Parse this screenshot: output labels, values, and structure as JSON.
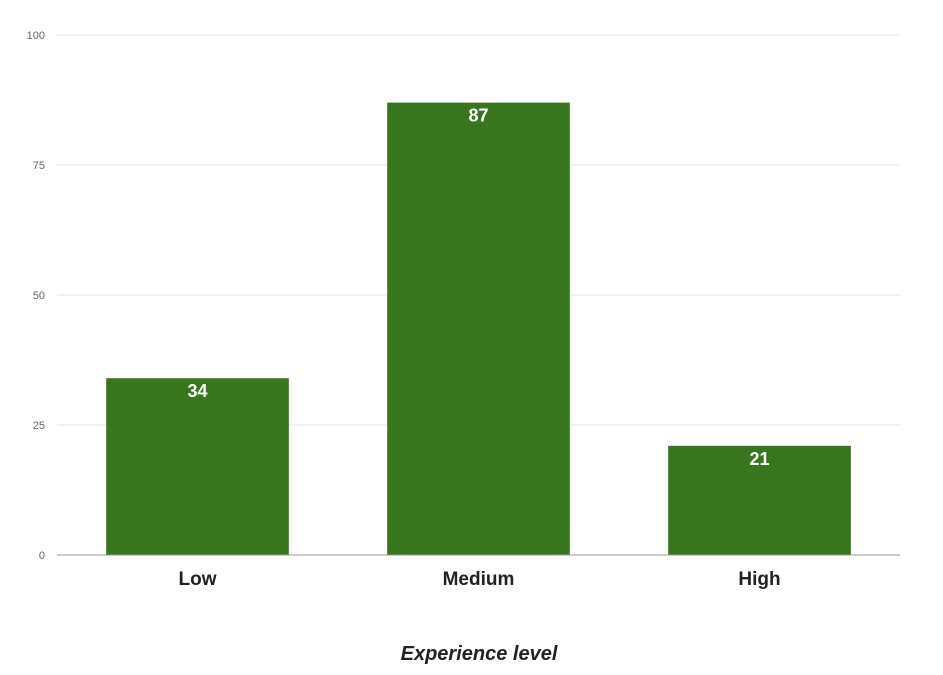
{
  "chart_data": {
    "type": "bar",
    "title": "",
    "xlabel": "Experience level",
    "ylabel": "",
    "categories": [
      "Low",
      "Medium",
      "High"
    ],
    "series": [
      {
        "values": [
          34,
          87,
          21
        ]
      }
    ],
    "ylim": [
      0,
      100
    ],
    "yticks": [
      0,
      25,
      50,
      75,
      100
    ],
    "grid": true,
    "legend": "none",
    "data_labels": true,
    "colors": {
      "bar": "#38761d",
      "grid": "#e0e0e0",
      "axis": "#999999",
      "tick_label": "#666666",
      "category_label": "#222222",
      "data_label": "#ffffff"
    }
  }
}
